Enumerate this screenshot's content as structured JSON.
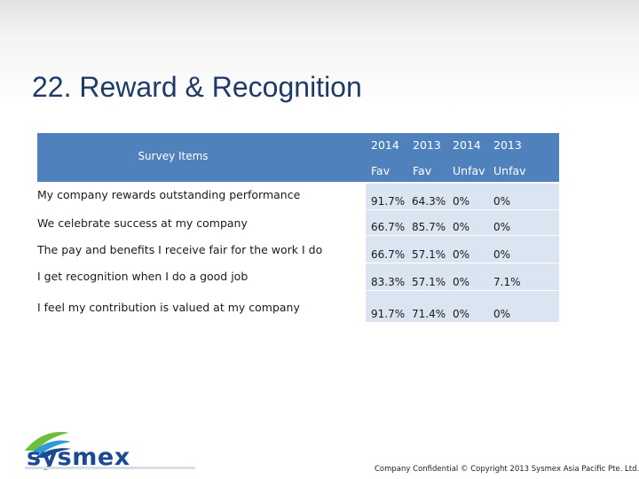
{
  "slide": {
    "title": "22. Reward & Recognition"
  },
  "table": {
    "header_items": "Survey Items",
    "columns": [
      {
        "year": "2014",
        "type": "Fav"
      },
      {
        "year": "2013",
        "type": "Fav"
      },
      {
        "year": "2014",
        "type": "Unfav"
      },
      {
        "year": "2013",
        "type": "Unfav"
      }
    ],
    "rows": [
      {
        "label": "My company rewards outstanding performance",
        "values": [
          "91.7%",
          "64.3%",
          "0%",
          "0%"
        ]
      },
      {
        "label": "We celebrate success at my company",
        "values": [
          "66.7%",
          "85.7%",
          "0%",
          "0%"
        ]
      },
      {
        "label": "The pay and benefits I receive fair for the work I do",
        "values": [
          "66.7%",
          "57.1%",
          "0%",
          "0%"
        ]
      },
      {
        "label": "I get recognition when I do a good job",
        "values": [
          "83.3%",
          "57.1%",
          "0%",
          "7.1%"
        ]
      },
      {
        "label": "I feel my contribution is valued at my company",
        "values": [
          "91.7%",
          "71.4%",
          "0%",
          "0%"
        ]
      }
    ]
  },
  "footer": {
    "logo_text": "sysmex",
    "copyright": "Company Confidential © Copyright 2013 Sysmex Asia Pacific Pte. Ltd."
  },
  "colors": {
    "header_fill": "#4f81bd",
    "cell_fill": "#dbe5f1",
    "title_color": "#1f3a68",
    "logo_blue": "#1c4a92",
    "logo_green": "#6cbf3a"
  }
}
